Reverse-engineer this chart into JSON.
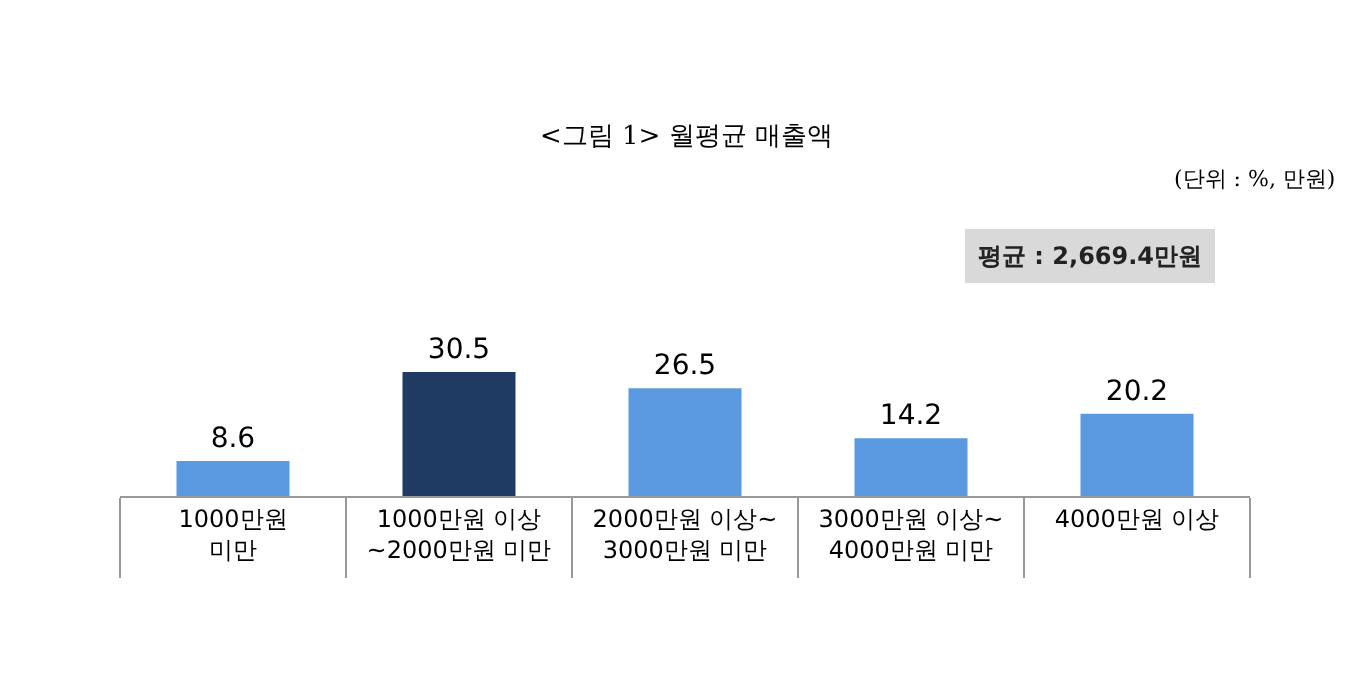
{
  "chart_data": {
    "type": "bar",
    "title": "<그림 1> 월평균 매출액",
    "subtitle": "(단위 : %, 만원)",
    "annotations": [
      "평균 : 2,669.4만원"
    ],
    "categories": [
      "1000만원\n미만",
      "1000만원 이상\n~2000만원 미만",
      "2000만원 이상~\n3000만원 미만",
      "3000만원 이상~\n4000만원 미만",
      "4000만원 이상"
    ],
    "values": [
      8.6,
      30.5,
      26.5,
      14.2,
      20.2
    ],
    "colors": [
      "#5b9ae0",
      "#1f3a63",
      "#5b9ae0",
      "#5b9ae0",
      "#5b9ae0"
    ],
    "data_labels": true
  }
}
